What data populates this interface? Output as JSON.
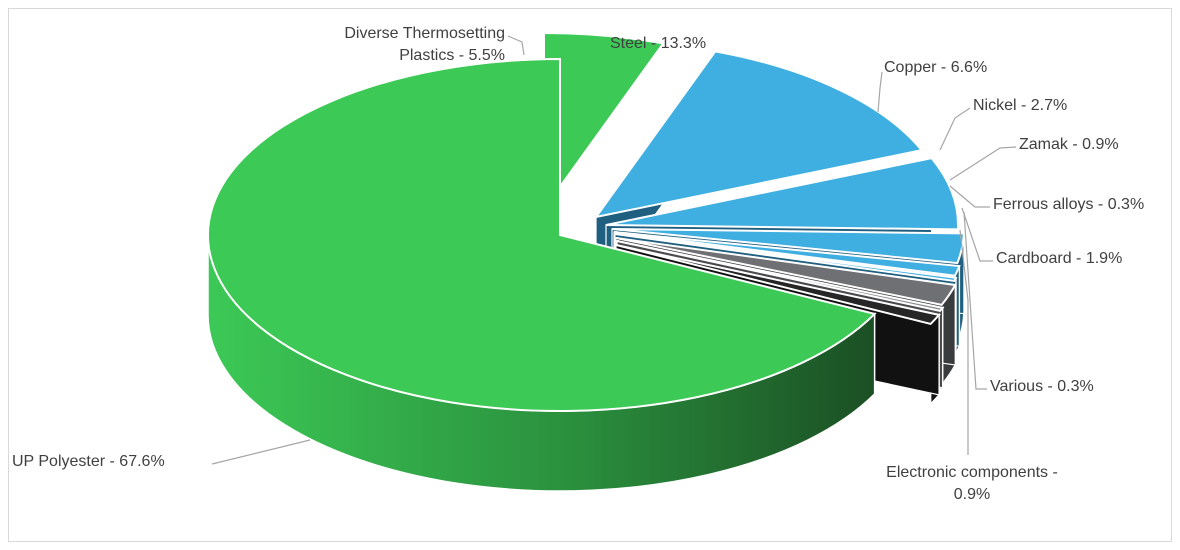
{
  "chart_data": {
    "type": "pie",
    "title": "",
    "style": "3d-exploded",
    "slices": [
      {
        "label": "UP Polyester - 67.6%",
        "name": "UP Polyester",
        "value": 67.6,
        "color": "#3cc956",
        "side_color": "#1e5e28",
        "exploded": false
      },
      {
        "label": "Diverse Thermosetting Plastics - 5.5%",
        "label_lines": [
          "Diverse Thermosetting",
          "Plastics - 5.5%"
        ],
        "name": "Diverse Thermosetting Plastics",
        "value": 5.5,
        "color": "#3cc956",
        "side_color": "#1e5e28",
        "exploded": true
      },
      {
        "label": "Steel - 13.3%",
        "name": "Steel",
        "value": 13.3,
        "color": "#3faee1",
        "side_color": "#1f5f80",
        "exploded": true
      },
      {
        "label": "Copper - 6.6%",
        "name": "Copper",
        "value": 6.6,
        "color": "#3faee1",
        "side_color": "#1f5f80",
        "exploded": true
      },
      {
        "label": "Nickel - 2.7%",
        "name": "Nickel",
        "value": 2.7,
        "color": "#3faee1",
        "side_color": "#1f5f80",
        "exploded": true
      },
      {
        "label": "Zamak - 0.9%",
        "name": "Zamak",
        "value": 0.9,
        "color": "#3faee1",
        "side_color": "#1f5f80",
        "exploded": true
      },
      {
        "label": "Ferrous alloys - 0.3%",
        "name": "Ferrous alloys",
        "value": 0.3,
        "color": "#3faee1",
        "side_color": "#1f5f80",
        "exploded": true
      },
      {
        "label": "Cardboard - 1.9%",
        "name": "Cardboard",
        "value": 1.9,
        "color": "#6f7073",
        "side_color": "#3a3b3d",
        "exploded": true
      },
      {
        "label": "Various - 0.3%",
        "name": "Various",
        "value": 0.3,
        "color": "#8c8d90",
        "side_color": "#4a4b4d",
        "exploded": true
      },
      {
        "label": "Electronic components - 0.9%",
        "label_lines": [
          "Electronic components -",
          "0.9%"
        ],
        "name": "Electronic components",
        "value": 0.9,
        "color": "#262626",
        "side_color": "#111111",
        "exploded": true
      }
    ]
  }
}
